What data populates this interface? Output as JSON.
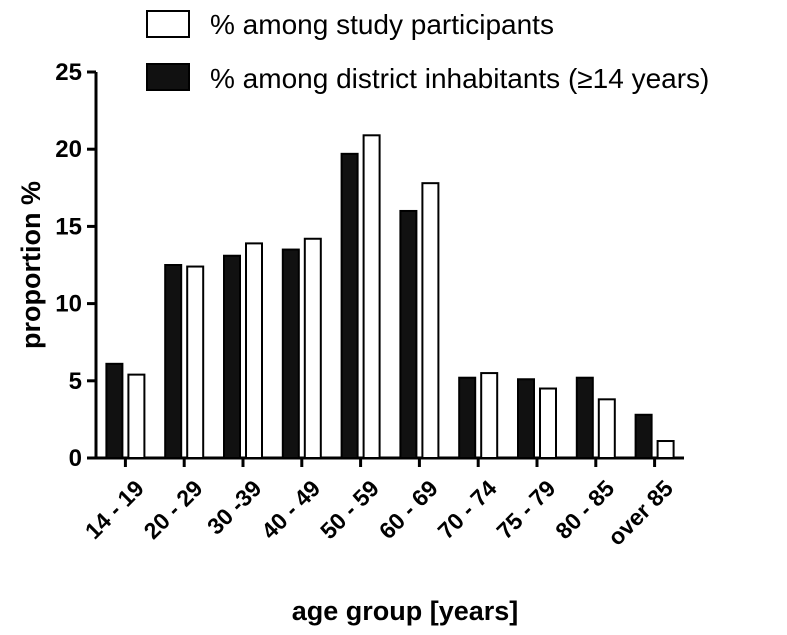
{
  "chart_data": {
    "type": "bar",
    "categories": [
      "14 - 19",
      "20 - 29",
      "30 -39",
      "40 - 49",
      "50 - 59",
      "60 - 69",
      "70 - 74",
      "75 - 79",
      "80 - 85",
      "over 85"
    ],
    "series": [
      {
        "name": "% among district inhabitants (≥14 years)",
        "values": [
          6.1,
          12.5,
          13.1,
          13.5,
          19.7,
          16.0,
          5.2,
          5.1,
          5.2,
          2.8
        ],
        "fill": "#111111"
      },
      {
        "name": "% among study participants",
        "values": [
          5.4,
          12.4,
          13.9,
          14.2,
          20.9,
          17.8,
          5.5,
          4.5,
          3.8,
          1.1
        ],
        "fill": "#ffffff"
      }
    ],
    "legend": [
      "% among study participants",
      "% among district inhabitants (≥14 years)"
    ],
    "legend_position": "top",
    "xlabel": "age group [years]",
    "ylabel": "proportion %",
    "ylim": [
      0,
      25
    ],
    "yticks": [
      "0",
      "5",
      "10",
      "15",
      "20",
      "25"
    ],
    "grid": false
  }
}
